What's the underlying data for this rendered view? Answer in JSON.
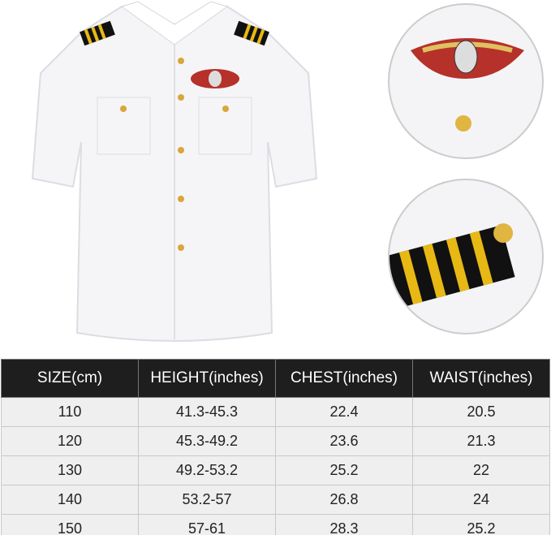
{
  "colors": {
    "header_bg": "#1e1e1e",
    "row_bg": "#efefef",
    "shirt": "#f7f7f9",
    "stripe_gold": "#e8b914",
    "stripe_black": "#111111"
  },
  "images": {
    "main": "white-pilot-shirt",
    "detail_1": "wing-badge-and-button",
    "detail_2": "epaulette-stripes"
  },
  "size_table": {
    "headers": [
      "SIZE(cm)",
      "HEIGHT(inches)",
      "CHEST(inches)",
      "WAIST(inches)"
    ],
    "rows": [
      [
        "110",
        "41.3-45.3",
        "22.4",
        "20.5"
      ],
      [
        "120",
        "45.3-49.2",
        "23.6",
        "21.3"
      ],
      [
        "130",
        "49.2-53.2",
        "25.2",
        "22"
      ],
      [
        "140",
        "53.2-57",
        "26.8",
        "24"
      ],
      [
        "150",
        "57-61",
        "28.3",
        "25.2"
      ]
    ]
  }
}
